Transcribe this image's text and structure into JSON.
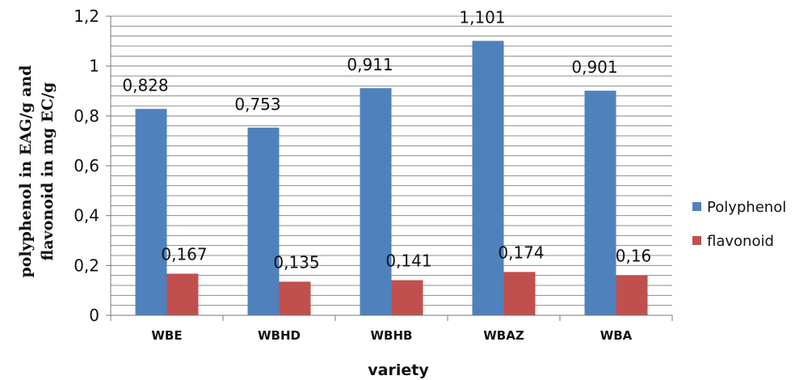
{
  "chart_data": {
    "type": "bar",
    "categories": [
      "WBE",
      "WBHD",
      "WBHB",
      "WBAZ",
      "WBA"
    ],
    "series": [
      {
        "name": "Polyphenol",
        "color": "#4F81BD",
        "values": [
          0.828,
          0.753,
          0.911,
          1.101,
          0.901
        ],
        "labels": [
          "0,828",
          "0,753",
          "0,911",
          "1,101",
          "0,901"
        ]
      },
      {
        "name": "flavonoid",
        "color": "#C0504D",
        "values": [
          0.167,
          0.135,
          0.141,
          0.174,
          0.16
        ],
        "labels": [
          "0,167",
          "0,135",
          "0,141",
          "0,174",
          "0,16"
        ]
      }
    ],
    "ylim": [
      0,
      1.2
    ],
    "yticks": [
      0,
      0.2,
      0.4,
      0.6,
      0.8,
      1,
      1.2
    ],
    "ytick_labels": [
      "0",
      "0,2",
      "0,4",
      "0,6",
      "0,8",
      "1",
      "1,2"
    ],
    "minor_gridline_step": 0.04,
    "xlabel": "variety",
    "ylabel_line1": "polyphenol in EAG/g and",
    "ylabel_line2": "flavonoid in mg EC/g",
    "legend_position": "right",
    "grid": true
  }
}
